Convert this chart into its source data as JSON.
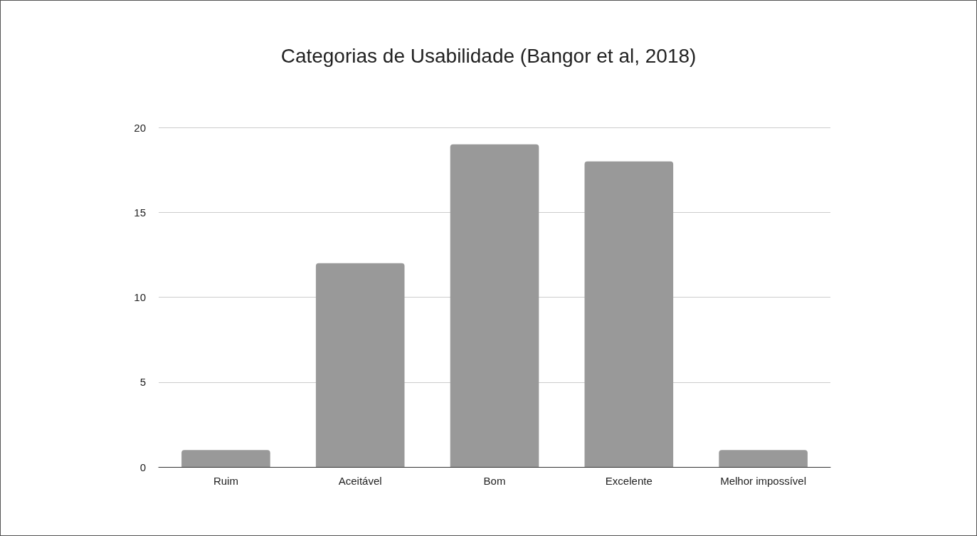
{
  "chart_data": {
    "type": "bar",
    "title": "Categorias de Usabilidade (Bangor et al, 2018)",
    "categories": [
      "Ruim",
      "Aceitável",
      "Bom",
      "Excelente",
      "Melhor impossível"
    ],
    "values": [
      1,
      12,
      19,
      18,
      1
    ],
    "color": "#999999",
    "ylim": [
      0,
      20
    ],
    "yticks": [
      0,
      5,
      10,
      15,
      20
    ],
    "grid": "y"
  }
}
